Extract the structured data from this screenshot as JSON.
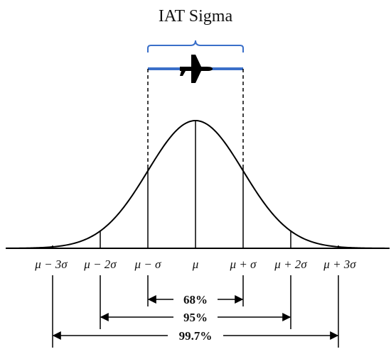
{
  "title": "IAT Sigma",
  "colors": {
    "bracket": "#3a6fc9",
    "line": "#000000"
  },
  "icons": {
    "aircraft": "airplane-icon"
  },
  "ticks": {
    "minus3": "μ − 3σ",
    "minus2": "μ − 2σ",
    "minus1": "μ − σ",
    "mean": "μ",
    "plus1": "μ + σ",
    "plus2": "μ + 2σ",
    "plus3": "μ + 3σ"
  },
  "ranges": {
    "one_sigma": "68%",
    "two_sigma": "95%",
    "three_sigma": "99.7%"
  }
}
